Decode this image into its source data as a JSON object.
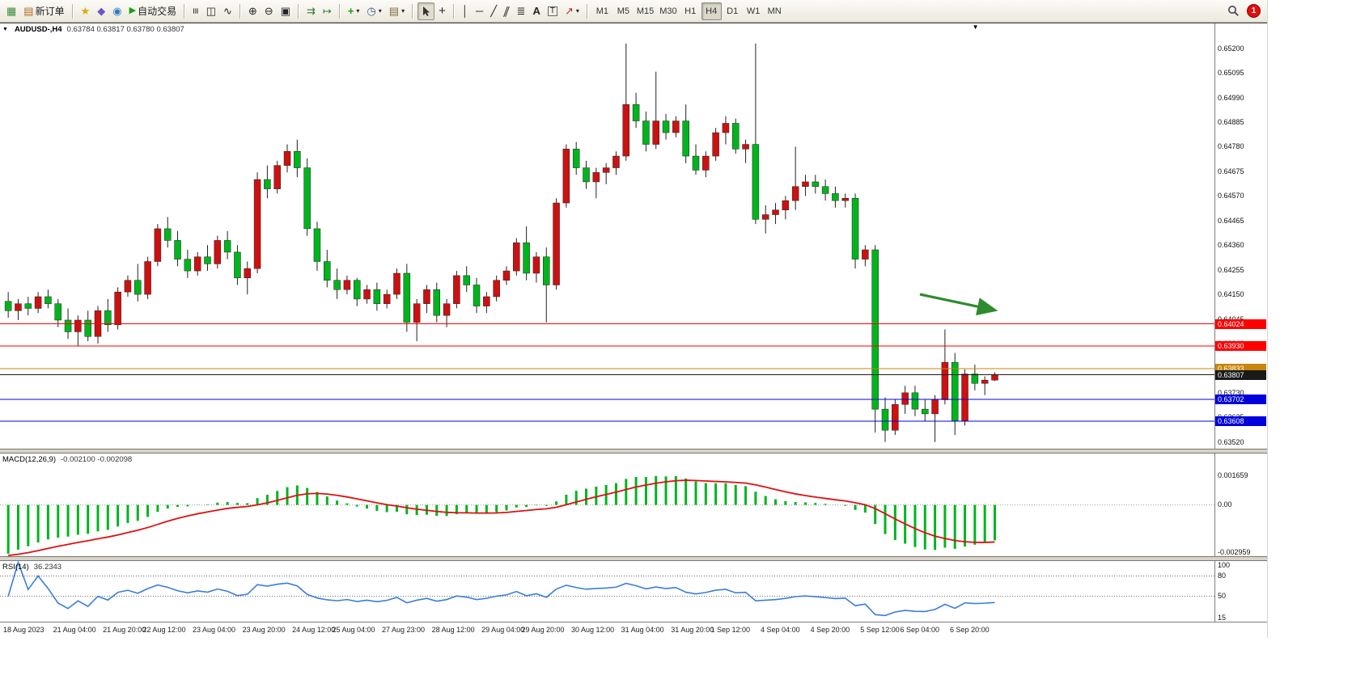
{
  "toolbar": {
    "new_order_label": "新订单",
    "autotrading_label": "自动交易",
    "timeframes": [
      "M1",
      "M5",
      "M15",
      "M30",
      "H1",
      "H4",
      "D1",
      "W1",
      "MN"
    ],
    "active_timeframe": "H4",
    "notification_badge": "1"
  },
  "icons": {
    "new_chart": "▦",
    "new_order": "▤",
    "community": "★",
    "metaeditor": "◆",
    "guide": "◉",
    "autotrading_play": "▶",
    "bars": "≡",
    "candles": "◫",
    "linechart": "∿",
    "zoom_in": "⊕",
    "zoom_out": "⊖",
    "tile_windows": "▣",
    "auto_scroll": "⇉",
    "chart_shift": "↦",
    "indicators": "+",
    "periods": "◷",
    "templates": "▤",
    "crosshair": "+",
    "vertical_line": "│",
    "horizontal_line": "─",
    "trendline": "╱",
    "channel": "∥",
    "fibonacci": "≣",
    "text": "A",
    "label": "T",
    "arrows_tool": "↗",
    "dropdown": "▾",
    "collapse": "▼",
    "shift_marker": "▼"
  },
  "chart_header": {
    "symbol": "AUDUSD-,H4",
    "ohlc": "0.63784 0.63817 0.63780 0.63807"
  },
  "chart_data": {
    "type": "candlestick",
    "symbol": "AUDUSD-",
    "timeframe": "H4",
    "y_axis": {
      "min": 0.63493,
      "max": 0.65306,
      "tick_labels": [
        "0.65200",
        "0.65095",
        "0.64990",
        "0.64885",
        "0.64780",
        "0.64675",
        "0.64570",
        "0.64465",
        "0.64360",
        "0.64255",
        "0.64150",
        "0.64045",
        "0.63940",
        "0.63835",
        "0.63730",
        "0.63625",
        "0.63520"
      ]
    },
    "x_labels": [
      "18 Aug 2023",
      "21 Aug 04:00",
      "21 Aug 20:00",
      "22 Aug 12:00",
      "23 Aug 04:00",
      "23 Aug 20:00",
      "24 Aug 12:00",
      "25 Aug 04:00",
      "27 Aug 23:00",
      "28 Aug 12:00",
      "29 Aug 04:00",
      "29 Aug 20:00",
      "30 Aug 12:00",
      "31 Aug 04:00",
      "31 Aug 20:00",
      "1 Sep 12:00",
      "4 Sep 04:00",
      "4 Sep 20:00",
      "5 Sep 12:00",
      "6 Sep 04:00",
      "6 Sep 20:00"
    ],
    "colors": {
      "up": "#CC1111",
      "down": "#00B41E",
      "wick": "#222222",
      "macd_hist": "#00B41E",
      "macd_signal": "#E01010",
      "rsi": "#3B7DD8",
      "level_dots": "#666666"
    },
    "candles": [
      [
        0.6412,
        0.6416,
        0.6405,
        0.6408
      ],
      [
        0.6408,
        0.6413,
        0.6404,
        0.6411
      ],
      [
        0.6411,
        0.6414,
        0.6406,
        0.6409
      ],
      [
        0.6409,
        0.6416,
        0.6407,
        0.6414
      ],
      [
        0.6414,
        0.6417,
        0.6409,
        0.6411
      ],
      [
        0.6411,
        0.6413,
        0.6401,
        0.6404
      ],
      [
        0.6404,
        0.6409,
        0.6396,
        0.6399
      ],
      [
        0.6399,
        0.6406,
        0.6393,
        0.6404
      ],
      [
        0.6404,
        0.6408,
        0.6395,
        0.6397
      ],
      [
        0.6397,
        0.641,
        0.6394,
        0.6408
      ],
      [
        0.6408,
        0.6413,
        0.6399,
        0.6402
      ],
      [
        0.6402,
        0.6418,
        0.64,
        0.6416
      ],
      [
        0.6416,
        0.6423,
        0.6414,
        0.6421
      ],
      [
        0.6421,
        0.6428,
        0.6412,
        0.6415
      ],
      [
        0.6415,
        0.6431,
        0.6413,
        0.6429
      ],
      [
        0.6429,
        0.6445,
        0.6427,
        0.6443
      ],
      [
        0.6443,
        0.6448,
        0.6435,
        0.6438
      ],
      [
        0.6438,
        0.6442,
        0.6427,
        0.643
      ],
      [
        0.643,
        0.6434,
        0.6422,
        0.6425
      ],
      [
        0.6425,
        0.6433,
        0.6423,
        0.6431
      ],
      [
        0.6431,
        0.6436,
        0.6425,
        0.6428
      ],
      [
        0.6428,
        0.644,
        0.6426,
        0.6438
      ],
      [
        0.6438,
        0.6442,
        0.643,
        0.6433
      ],
      [
        0.6433,
        0.6436,
        0.6419,
        0.6422
      ],
      [
        0.6422,
        0.6429,
        0.6415,
        0.6426
      ],
      [
        0.6426,
        0.6467,
        0.6424,
        0.6464
      ],
      [
        0.6464,
        0.647,
        0.6456,
        0.646
      ],
      [
        0.646,
        0.6472,
        0.6458,
        0.647
      ],
      [
        0.647,
        0.6479,
        0.6467,
        0.6476
      ],
      [
        0.6476,
        0.6481,
        0.6465,
        0.6469
      ],
      [
        0.6469,
        0.6473,
        0.644,
        0.6443
      ],
      [
        0.6443,
        0.6446,
        0.6425,
        0.6429
      ],
      [
        0.6429,
        0.6434,
        0.6418,
        0.6421
      ],
      [
        0.6421,
        0.6426,
        0.6413,
        0.6417
      ],
      [
        0.6417,
        0.6423,
        0.6415,
        0.6421
      ],
      [
        0.6421,
        0.6422,
        0.641,
        0.6413
      ],
      [
        0.6413,
        0.6419,
        0.6411,
        0.6417
      ],
      [
        0.6417,
        0.642,
        0.6408,
        0.6411
      ],
      [
        0.6411,
        0.6417,
        0.6409,
        0.6415
      ],
      [
        0.6415,
        0.6426,
        0.6413,
        0.6424
      ],
      [
        0.6424,
        0.6428,
        0.6399,
        0.6403
      ],
      [
        0.6403,
        0.6413,
        0.6395,
        0.6411
      ],
      [
        0.6411,
        0.6419,
        0.6407,
        0.6417
      ],
      [
        0.6417,
        0.642,
        0.6403,
        0.6406
      ],
      [
        0.6406,
        0.6413,
        0.6401,
        0.6411
      ],
      [
        0.6411,
        0.6425,
        0.6409,
        0.6423
      ],
      [
        0.6423,
        0.6427,
        0.6416,
        0.6419
      ],
      [
        0.6419,
        0.6422,
        0.6407,
        0.641
      ],
      [
        0.641,
        0.6416,
        0.6407,
        0.6414
      ],
      [
        0.6414,
        0.6423,
        0.6412,
        0.6421
      ],
      [
        0.6421,
        0.6427,
        0.6419,
        0.6425
      ],
      [
        0.6425,
        0.6439,
        0.6423,
        0.6437
      ],
      [
        0.6437,
        0.6444,
        0.6421,
        0.6424
      ],
      [
        0.6424,
        0.6433,
        0.642,
        0.6431
      ],
      [
        0.6431,
        0.6435,
        0.6403,
        0.6419
      ],
      [
        0.6419,
        0.6456,
        0.6417,
        0.6454
      ],
      [
        0.6454,
        0.6479,
        0.6452,
        0.6477
      ],
      [
        0.6477,
        0.648,
        0.6466,
        0.6469
      ],
      [
        0.6469,
        0.6472,
        0.646,
        0.6463
      ],
      [
        0.6463,
        0.6469,
        0.6456,
        0.6467
      ],
      [
        0.6467,
        0.6471,
        0.6462,
        0.6469
      ],
      [
        0.6469,
        0.6476,
        0.6466,
        0.6474
      ],
      [
        0.6474,
        0.6522,
        0.6472,
        0.6496
      ],
      [
        0.6496,
        0.6501,
        0.6486,
        0.6489
      ],
      [
        0.6489,
        0.6493,
        0.6476,
        0.6479
      ],
      [
        0.6479,
        0.651,
        0.6477,
        0.6489
      ],
      [
        0.6489,
        0.6492,
        0.6481,
        0.6484
      ],
      [
        0.6484,
        0.6491,
        0.6482,
        0.6489
      ],
      [
        0.6489,
        0.6496,
        0.6471,
        0.6474
      ],
      [
        0.6474,
        0.6479,
        0.6466,
        0.6468
      ],
      [
        0.6468,
        0.6476,
        0.6465,
        0.6474
      ],
      [
        0.6474,
        0.6486,
        0.6472,
        0.6484
      ],
      [
        0.6484,
        0.6491,
        0.6479,
        0.6488
      ],
      [
        0.6488,
        0.649,
        0.6475,
        0.6477
      ],
      [
        0.6477,
        0.6481,
        0.6471,
        0.6479
      ],
      [
        0.6479,
        0.6522,
        0.6445,
        0.6447
      ],
      [
        0.6447,
        0.6453,
        0.6441,
        0.6449
      ],
      [
        0.6449,
        0.6454,
        0.6445,
        0.6451
      ],
      [
        0.6451,
        0.6457,
        0.6447,
        0.6455
      ],
      [
        0.6455,
        0.6478,
        0.6451,
        0.6461
      ],
      [
        0.6461,
        0.6466,
        0.6457,
        0.6463
      ],
      [
        0.6463,
        0.6466,
        0.6458,
        0.6461
      ],
      [
        0.6461,
        0.6464,
        0.6455,
        0.6458
      ],
      [
        0.6458,
        0.6461,
        0.6452,
        0.6455
      ],
      [
        0.6455,
        0.6458,
        0.6452,
        0.6456
      ],
      [
        0.6456,
        0.6458,
        0.6426,
        0.643
      ],
      [
        0.643,
        0.6436,
        0.6427,
        0.6434
      ],
      [
        0.6434,
        0.6436,
        0.6356,
        0.6366
      ],
      [
        0.6366,
        0.6371,
        0.6352,
        0.6357
      ],
      [
        0.6357,
        0.637,
        0.6355,
        0.6368
      ],
      [
        0.6368,
        0.6376,
        0.6364,
        0.6373
      ],
      [
        0.6373,
        0.6376,
        0.6363,
        0.6366
      ],
      [
        0.6366,
        0.637,
        0.6361,
        0.6364
      ],
      [
        0.6364,
        0.6372,
        0.6352,
        0.637
      ],
      [
        0.637,
        0.64,
        0.6368,
        0.6386
      ],
      [
        0.6386,
        0.639,
        0.6355,
        0.6361
      ],
      [
        0.6361,
        0.6383,
        0.6359,
        0.6381
      ],
      [
        0.6381,
        0.6385,
        0.6374,
        0.6377
      ],
      [
        0.6377,
        0.638,
        0.6372,
        0.63784
      ],
      [
        0.63784,
        0.63817,
        0.6378,
        0.63807
      ]
    ],
    "price_lines": [
      {
        "label": "0.64024",
        "value": 0.64024,
        "color": "#FF0000"
      },
      {
        "label": "0.63930",
        "value": 0.6393,
        "color": "#FF0000"
      },
      {
        "label": "0.63833",
        "value": 0.63833,
        "color": "#C8860A"
      },
      {
        "label": "0.63807",
        "value": 0.63807,
        "color": "#1A1A1A"
      },
      {
        "label": "0.63702",
        "value": 0.63702,
        "color": "#0000DC"
      },
      {
        "label": "0.63608",
        "value": 0.63608,
        "color": "#0000DC"
      }
    ],
    "annotation_arrow": {
      "x1_frac": 0.757,
      "price1": 0.6415,
      "x2_frac": 0.818,
      "price2": 0.64083,
      "color": "#2E8B2E"
    },
    "shift_marker_frac": 0.8,
    "macd": {
      "title": "MACD(12,26,9)",
      "values": "-0.002100 -0.002098",
      "params": [
        12,
        26,
        9
      ],
      "range": 0.00295,
      "axis": [
        {
          "text": "0.001659",
          "value": 0.001659
        },
        {
          "text": "0.00",
          "value": 0
        },
        {
          "text": "-0.002959",
          "value": -0.002959
        }
      ]
    },
    "rsi": {
      "title": "RSI(14)",
      "value": "36.2343",
      "period": 14,
      "range": [
        12,
        102
      ],
      "levels": [
        80,
        50
      ],
      "axis": [
        {
          "text": "100",
          "value": 100
        },
        {
          "text": "80",
          "value": 80
        },
        {
          "text": "50",
          "value": 50
        },
        {
          "text": "15",
          "value": 15
        }
      ]
    }
  }
}
